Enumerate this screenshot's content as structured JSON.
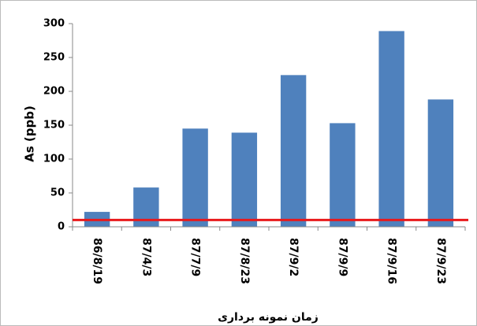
{
  "chart_data": {
    "type": "bar",
    "y_label": "As  (ppb)",
    "x_label": "زمان نمونه برداری",
    "categories": [
      "86/8/19",
      "87/4/3",
      "87/7/9",
      "87/8/23",
      "87/9/2",
      "87/9/9",
      "87/9/16",
      "87/9/23"
    ],
    "values": [
      22,
      58,
      145,
      139,
      224,
      153,
      289,
      188
    ],
    "color": "#4f81bd",
    "reference_line": {
      "value": 10,
      "color": "#e8191c"
    },
    "ylim": [
      0,
      300
    ],
    "yticks": [
      0,
      50,
      100,
      150,
      200,
      250,
      300
    ],
    "grid": false
  }
}
